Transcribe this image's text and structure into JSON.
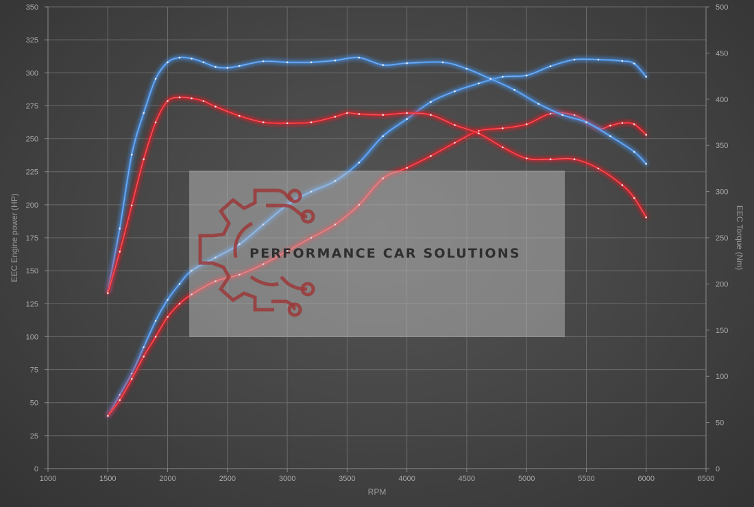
{
  "chart_data": {
    "type": "line",
    "xlabel": "RPM",
    "ylabel": "EEC Engine power (HP)",
    "y2label": "EEC Torque (Nm)",
    "xlim": [
      1000,
      6500
    ],
    "ylim": [
      0,
      350
    ],
    "y2lim": [
      0,
      500
    ],
    "xticks": [
      "1000",
      "1500",
      "2000",
      "2500",
      "3000",
      "3500",
      "4000",
      "4500",
      "5000",
      "5500",
      "6000",
      "6500"
    ],
    "yticks": [
      "0",
      "25",
      "50",
      "75",
      "100",
      "125",
      "150",
      "175",
      "200",
      "225",
      "250",
      "275",
      "300",
      "325",
      "350"
    ],
    "y2ticks": [
      "0",
      "50",
      "100",
      "150",
      "200",
      "250",
      "300",
      "350",
      "400",
      "450",
      "500"
    ],
    "grid": true,
    "series": [
      {
        "axis": "left",
        "color": "#4a90e2",
        "x": [
          1500,
          1600,
          1700,
          1800,
          1900,
          2000,
          2100,
          2200,
          2400,
          2600,
          2800,
          3000,
          3200,
          3400,
          3600,
          3800,
          4000,
          4200,
          4400,
          4600,
          4800,
          5000,
          5200,
          5400,
          5600,
          5800,
          5900,
          6000
        ],
        "y": [
          40,
          56,
          72,
          92,
          112,
          128,
          140,
          150,
          160,
          170,
          185,
          200,
          210,
          218,
          232,
          252,
          265,
          278,
          286,
          292,
          297,
          298,
          305,
          310,
          310,
          309,
          307,
          297
        ]
      },
      {
        "axis": "left",
        "color": "#e0282d",
        "x": [
          1500,
          1600,
          1700,
          1800,
          1900,
          2000,
          2100,
          2200,
          2400,
          2600,
          2800,
          3000,
          3200,
          3400,
          3600,
          3800,
          4000,
          4200,
          4400,
          4600,
          4800,
          5000,
          5200,
          5400,
          5600,
          5700,
          5800,
          5900,
          6000
        ],
        "y": [
          40,
          52,
          68,
          85,
          100,
          115,
          125,
          132,
          142,
          147,
          155,
          165,
          175,
          185,
          200,
          220,
          228,
          237,
          247,
          256,
          258,
          261,
          269,
          268,
          258,
          260,
          262,
          261,
          253
        ]
      },
      {
        "axis": "right",
        "color": "#4a90e2",
        "x": [
          1500,
          1600,
          1700,
          1800,
          1900,
          2000,
          2100,
          2200,
          2300,
          2400,
          2500,
          2600,
          2800,
          3000,
          3200,
          3400,
          3600,
          3800,
          4000,
          4300,
          4500,
          4700,
          4900,
          5100,
          5300,
          5500,
          5700,
          5900,
          6000
        ],
        "y": [
          192,
          260,
          340,
          385,
          422,
          440,
          445,
          444,
          440,
          435,
          434,
          436,
          441,
          440,
          440,
          442,
          445,
          437,
          439,
          440,
          433,
          422,
          410,
          395,
          383,
          375,
          360,
          343,
          330
        ]
      },
      {
        "axis": "right",
        "color": "#e0282d",
        "x": [
          1500,
          1600,
          1700,
          1800,
          1900,
          2000,
          2100,
          2200,
          2300,
          2400,
          2600,
          2800,
          3000,
          3200,
          3400,
          3500,
          3600,
          3800,
          4000,
          4200,
          4400,
          4600,
          4800,
          5000,
          5200,
          5400,
          5600,
          5800,
          5900,
          6000
        ],
        "y": [
          190,
          235,
          285,
          335,
          375,
          398,
          402,
          401,
          398,
          392,
          382,
          375,
          374,
          375,
          381,
          385,
          384,
          383,
          385,
          383,
          372,
          363,
          348,
          336,
          335,
          335,
          325,
          307,
          293,
          272
        ]
      }
    ]
  },
  "watermark": {
    "text": "PERFORMANCE CAR SOLUTIONS",
    "logo_icon": "gear-circuit-logo-icon"
  }
}
